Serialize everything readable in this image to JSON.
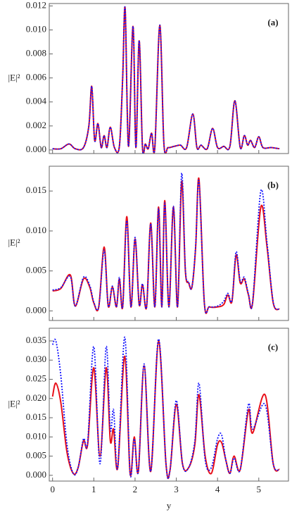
{
  "chart_data": [
    {
      "type": "line",
      "label": "(a)",
      "ylabel": "|E|²",
      "x": [
        0,
        0.2,
        0.4,
        0.55,
        0.75,
        0.88,
        0.95,
        1.02,
        1.1,
        1.18,
        1.25,
        1.32,
        1.4,
        1.5,
        1.62,
        1.7,
        1.76,
        1.84,
        1.95,
        2.02,
        2.1,
        2.18,
        2.25,
        2.32,
        2.4,
        2.48,
        2.6,
        2.7,
        2.8,
        2.95,
        3.1,
        3.25,
        3.4,
        3.5,
        3.6,
        3.75,
        3.88,
        4.0,
        4.15,
        4.3,
        4.42,
        4.55,
        4.65,
        4.73,
        4.8,
        4.9,
        5.0,
        5.1,
        5.3,
        5.5
      ],
      "series": [
        {
          "color": "#e8101a",
          "dash": "solid",
          "values": [
            0.0001,
            0.0001,
            0.0005,
            0.0001,
            0.0002,
            0.002,
            0.0053,
            0.0008,
            0.0022,
            0.0002,
            0.0012,
            0.0002,
            0.0019,
            0.0002,
            0.0003,
            0.006,
            0.0118,
            0.0003,
            0.0103,
            0.0002,
            0.0091,
            0.0002,
            0.0005,
            0.0001,
            0.0014,
            0.0002,
            0.0104,
            0.0005,
            0.0002,
            0.0003,
            0.0004,
            0.0002,
            0.003,
            0.0002,
            0.0004,
            0.0001,
            0.0018,
            0.0002,
            0.0003,
            0.0003,
            0.0041,
            0.0002,
            0.0012,
            0.0004,
            0.0008,
            0.0002,
            0.0011,
            0.0002,
            0.0002,
            0.0001
          ]
        },
        {
          "color": "#1010ff",
          "dash": "dotted",
          "values": [
            0.0001,
            0.0001,
            0.0005,
            0.0001,
            0.0002,
            0.002,
            0.0053,
            0.0008,
            0.0022,
            0.0002,
            0.0012,
            0.0002,
            0.0019,
            0.0002,
            0.0003,
            0.006,
            0.0118,
            0.0003,
            0.0103,
            0.0002,
            0.0091,
            0.0002,
            0.0005,
            0.0001,
            0.0014,
            0.0002,
            0.0104,
            0.0005,
            0.0002,
            0.0003,
            0.0004,
            0.0002,
            0.003,
            0.0002,
            0.0004,
            0.0001,
            0.0018,
            0.0002,
            0.0003,
            0.0003,
            0.0041,
            0.0002,
            0.0012,
            0.0004,
            0.0008,
            0.0002,
            0.0011,
            0.0002,
            0.0002,
            0.0001
          ]
        }
      ],
      "xlim": [
        -0.08,
        5.72
      ],
      "ylim": [
        -0.0003,
        0.0122
      ],
      "yticks": [
        {
          "value": 0,
          "label": "0.000"
        },
        {
          "value": 0.002,
          "label": "0.002"
        },
        {
          "value": 0.004,
          "label": "0.004"
        },
        {
          "value": 0.006,
          "label": "0.006"
        },
        {
          "value": 0.008,
          "label": "0.008"
        },
        {
          "value": 0.01,
          "label": "0.010"
        },
        {
          "value": 0.012,
          "label": "0.012"
        }
      ]
    },
    {
      "type": "line",
      "label": "(b)",
      "ylabel": "|E|²",
      "x": [
        0,
        0.2,
        0.43,
        0.55,
        0.75,
        0.9,
        1.0,
        1.12,
        1.25,
        1.35,
        1.45,
        1.55,
        1.62,
        1.7,
        1.8,
        1.9,
        2.0,
        2.1,
        2.18,
        2.28,
        2.38,
        2.48,
        2.57,
        2.65,
        2.72,
        2.82,
        2.93,
        3.03,
        3.13,
        3.22,
        3.3,
        3.38,
        3.47,
        3.55,
        3.68,
        3.8,
        4.0,
        4.15,
        4.25,
        4.35,
        4.45,
        4.55,
        4.65,
        4.75,
        4.85,
        5.05,
        5.2,
        5.35,
        5.5
      ],
      "series": [
        {
          "color": "#e8101a",
          "dash": "solid",
          "values": [
            0.0025,
            0.0028,
            0.0045,
            0.0006,
            0.004,
            0.003,
            0.001,
            0.0005,
            0.008,
            0.0006,
            0.003,
            0.0005,
            0.004,
            0.0005,
            0.0118,
            0.0005,
            0.009,
            0.0008,
            0.0033,
            0.0005,
            0.011,
            0.0005,
            0.013,
            0.0005,
            0.0138,
            0.0005,
            0.013,
            0.0005,
            0.0162,
            0.005,
            0.0035,
            0.003,
            0.008,
            0.0165,
            0.001,
            0.0005,
            0.0005,
            0.0008,
            0.002,
            0.0012,
            0.007,
            0.0035,
            0.004,
            0.002,
            0.001,
            0.013,
            0.008,
            0.001,
            0.0002
          ]
        },
        {
          "color": "#1010ff",
          "dash": "dotted",
          "values": [
            0.0026,
            0.0029,
            0.0043,
            0.0006,
            0.0042,
            0.0032,
            0.0011,
            0.0005,
            0.0076,
            0.0006,
            0.0031,
            0.0005,
            0.0042,
            0.0005,
            0.0113,
            0.0005,
            0.0092,
            0.0008,
            0.0034,
            0.0005,
            0.0109,
            0.0005,
            0.0128,
            0.0005,
            0.0135,
            0.0005,
            0.0131,
            0.0005,
            0.0172,
            0.0052,
            0.0036,
            0.003,
            0.0082,
            0.0162,
            0.001,
            0.0005,
            0.0006,
            0.0012,
            0.0022,
            0.0013,
            0.0074,
            0.0037,
            0.0042,
            0.0021,
            0.0011,
            0.015,
            0.0085,
            0.0011,
            0.0002
          ]
        }
      ],
      "xlim": [
        -0.08,
        5.72
      ],
      "ylim": [
        -0.0012,
        0.0181
      ],
      "yticks": [
        {
          "value": 0,
          "label": "0.000"
        },
        {
          "value": 0.005,
          "label": "0.005"
        },
        {
          "value": 0.01,
          "label": "0.010"
        },
        {
          "value": 0.015,
          "label": "0.015"
        }
      ]
    },
    {
      "type": "line",
      "label": "(c)",
      "ylabel": "|E|²",
      "xlabel": "y",
      "x": [
        0,
        0.08,
        0.2,
        0.35,
        0.5,
        0.62,
        0.75,
        0.85,
        1.0,
        1.15,
        1.3,
        1.4,
        1.48,
        1.58,
        1.75,
        1.88,
        1.98,
        2.08,
        2.22,
        2.38,
        2.57,
        2.75,
        2.85,
        3.0,
        3.15,
        3.3,
        3.45,
        3.55,
        3.7,
        3.85,
        4.0,
        4.1,
        4.2,
        4.3,
        4.4,
        4.55,
        4.75,
        4.85,
        5.15,
        5.35,
        5.5
      ],
      "series": [
        {
          "color": "#e8101a",
          "dash": "solid",
          "values": [
            0.0205,
            0.024,
            0.019,
            0.006,
            0.0005,
            0.002,
            0.009,
            0.008,
            0.028,
            0.005,
            0.028,
            0.009,
            0.012,
            0.002,
            0.031,
            0.0005,
            0.01,
            0.001,
            0.0285,
            0.001,
            0.035,
            0.003,
            0.0015,
            0.0185,
            0.003,
            0.002,
            0.008,
            0.021,
            0.005,
            0.0005,
            0.008,
            0.0085,
            0.004,
            0.0005,
            0.005,
            0.0015,
            0.017,
            0.011,
            0.021,
            0.003,
            0.0015
          ]
        },
        {
          "color": "#1010ff",
          "dash": "dotted",
          "values": [
            0.034,
            0.035,
            0.026,
            0.008,
            0.0005,
            0.002,
            0.0095,
            0.0085,
            0.0335,
            0.003,
            0.0335,
            0.012,
            0.017,
            0.002,
            0.036,
            0.0005,
            0.0095,
            0.001,
            0.029,
            0.001,
            0.0355,
            0.003,
            0.0015,
            0.0195,
            0.003,
            0.002,
            0.009,
            0.024,
            0.004,
            0.002,
            0.0095,
            0.0105,
            0.004,
            0.0005,
            0.0045,
            0.0015,
            0.0185,
            0.012,
            0.0185,
            0.003,
            0.0015
          ]
        }
      ],
      "xlim": [
        -0.08,
        5.72
      ],
      "ylim": [
        -0.0015,
        0.0383
      ],
      "xticks": [
        0,
        1,
        2,
        3,
        4,
        5
      ],
      "yticks": [
        {
          "value": 0,
          "label": "0.000"
        },
        {
          "value": 0.005,
          "label": "0.005"
        },
        {
          "value": 0.01,
          "label": "0.010"
        },
        {
          "value": 0.015,
          "label": "0.015"
        },
        {
          "value": 0.02,
          "label": "0.020"
        },
        {
          "value": 0.025,
          "label": "0.025"
        },
        {
          "value": 0.03,
          "label": "0.030"
        },
        {
          "value": 0.035,
          "label": "0.035"
        }
      ]
    }
  ]
}
